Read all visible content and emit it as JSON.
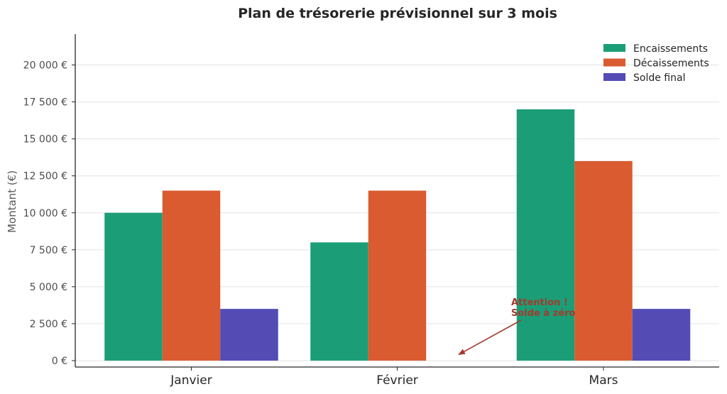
{
  "chart_data": {
    "type": "bar",
    "title": "Plan de trésorerie prévisionnel sur 3 mois",
    "ylabel": "Montant (€)",
    "xlabel": "",
    "categories": [
      "Janvier",
      "Février",
      "Mars"
    ],
    "series": [
      {
        "name": "Encaissements",
        "values": [
          10000,
          8000,
          17000
        ],
        "color": "#1b9e77"
      },
      {
        "name": "Décaissements",
        "values": [
          11500,
          11500,
          13500
        ],
        "color": "#d95b2f"
      },
      {
        "name": "Solde final",
        "values": [
          3500,
          0,
          3500
        ],
        "color": "#544bb5"
      }
    ],
    "ylim": [
      0,
      22000
    ],
    "yticks": [
      0,
      2500,
      5000,
      7500,
      10000,
      12500,
      15000,
      17500,
      20000
    ],
    "ytick_labels": [
      "0 €",
      "2 500 €",
      "5 000 €",
      "7 500 €",
      "10 000 €",
      "12 500 €",
      "15 000 €",
      "17 500 €",
      "20 000 €"
    ],
    "grid": true,
    "legend_position": "top-right",
    "annotation": {
      "lines": [
        "Attention !",
        "Solde à zéro"
      ],
      "category": "Février",
      "value": 0,
      "color": "#a33a2e"
    }
  }
}
